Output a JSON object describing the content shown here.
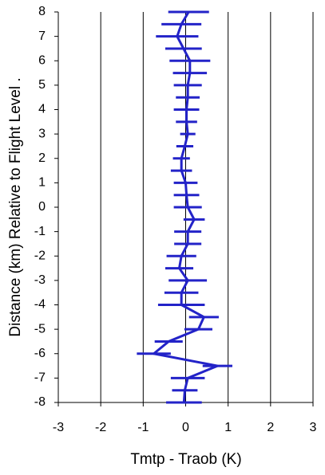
{
  "chart_data": {
    "type": "line",
    "x_label": "Tmtp - Traob (K)",
    "y_label": "Distance  (km) Relative to Flight Level .",
    "color": "#2323c8",
    "grid": true,
    "y": [
      8,
      7.5,
      7,
      6.5,
      6,
      5.5,
      5,
      4.5,
      4,
      3.5,
      3,
      2.5,
      2,
      1.5,
      1,
      0.5,
      0,
      -0.5,
      -1,
      -1.5,
      -2,
      -2.5,
      -3,
      -3.5,
      -4,
      -4.5,
      -5,
      -5.5,
      -6,
      -6.5,
      -7,
      -7.5,
      -8
    ],
    "values": [
      0.07,
      -0.1,
      -0.2,
      -0.05,
      0.1,
      0.1,
      0.05,
      0.05,
      0.02,
      0.02,
      0.05,
      -0.02,
      -0.1,
      -0.1,
      0,
      0.02,
      0.05,
      0.2,
      0.05,
      0.05,
      -0.1,
      -0.15,
      0.05,
      -0.1,
      -0.1,
      0.43,
      0.3,
      -0.4,
      -0.75,
      0.75,
      0.05,
      -0.02,
      -0.04
    ],
    "xerr": [
      0.48,
      0.47,
      0.5,
      0.43,
      0.48,
      0.4,
      0.33,
      0.28,
      0.3,
      0.25,
      0.18,
      0.2,
      0.2,
      0.25,
      0.28,
      0.3,
      0.33,
      0.25,
      0.32,
      0.32,
      0.35,
      0.33,
      0.45,
      0.4,
      0.55,
      0.35,
      0.33,
      0.33,
      0.4,
      0.35,
      0.4,
      0.3,
      0.42
    ],
    "xlim": [
      -3,
      3
    ],
    "xticks": [
      -3,
      -2,
      -1,
      0,
      1,
      2,
      3
    ],
    "ylim": [
      -8,
      8
    ],
    "yticks": [
      -8,
      -7,
      -6,
      -5,
      -4,
      -3,
      -2,
      -1,
      0,
      1,
      2,
      3,
      4,
      5,
      6,
      7,
      8
    ]
  }
}
